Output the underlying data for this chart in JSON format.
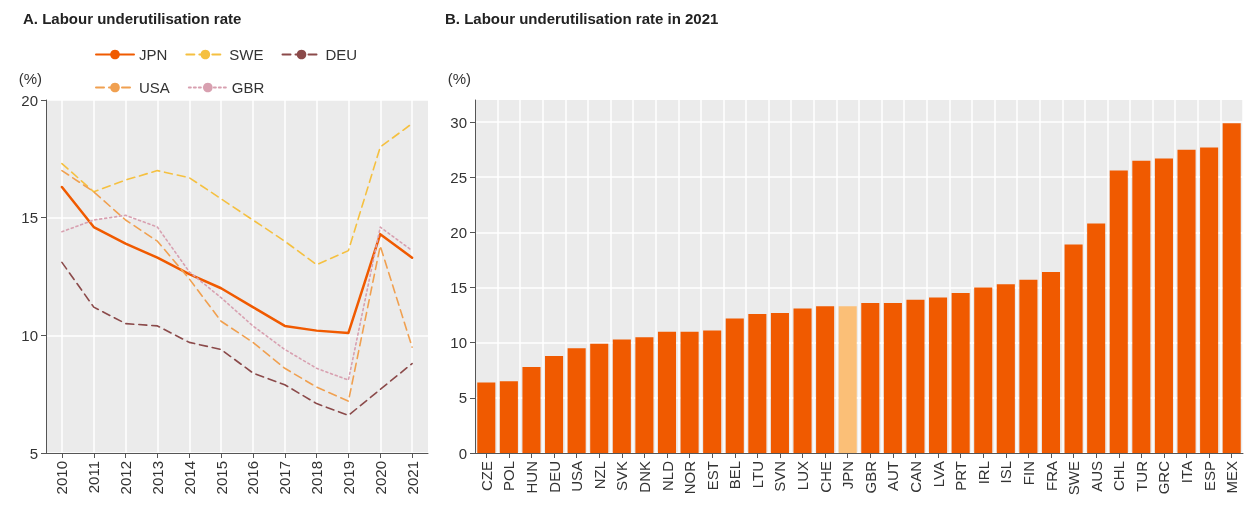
{
  "chart_data": [
    {
      "type": "line",
      "title": "A. Labour underutilisation rate",
      "ylabel": "(%)",
      "x": [
        2010,
        2011,
        2012,
        2013,
        2014,
        2015,
        2016,
        2017,
        2018,
        2019,
        2020,
        2021
      ],
      "xlim": [
        2009.5,
        2021.5
      ],
      "xticks": [
        2010,
        2011,
        2012,
        2013,
        2014,
        2015,
        2016,
        2017,
        2018,
        2019,
        2020,
        2021
      ],
      "ylim": [
        5,
        20
      ],
      "yticks": [
        5,
        10,
        15,
        20
      ],
      "grid": true,
      "legend": "top",
      "marker": "none",
      "series": [
        {
          "name": "JPN",
          "color": "#f05a00",
          "line_style": "solid",
          "values": [
            16.3,
            14.6,
            13.9,
            13.3,
            12.6,
            12.0,
            11.2,
            10.4,
            10.2,
            10.1,
            14.3,
            13.3
          ]
        },
        {
          "name": "SWE",
          "color": "#f5c040",
          "line_style": "dashed",
          "values": [
            17.3,
            16.1,
            16.6,
            17.0,
            16.7,
            15.8,
            14.9,
            14.0,
            13.0,
            13.6,
            18.0,
            19.0
          ]
        },
        {
          "name": "DEU",
          "color": "#8b4a4a",
          "line_style": "dashed",
          "values": [
            13.1,
            11.2,
            10.5,
            10.4,
            9.7,
            9.4,
            8.4,
            7.9,
            7.1,
            6.6,
            7.7,
            8.8
          ]
        },
        {
          "name": "USA",
          "color": "#f0a050",
          "line_style": "dashed",
          "values": [
            17.0,
            16.1,
            14.9,
            14.0,
            12.4,
            10.6,
            9.7,
            8.6,
            7.8,
            7.2,
            13.8,
            9.5
          ]
        },
        {
          "name": "GBR",
          "color": "#d8a0b0",
          "line_style": "dotted",
          "values": [
            14.4,
            14.9,
            15.1,
            14.6,
            12.7,
            11.6,
            10.4,
            9.4,
            8.6,
            8.1,
            14.6,
            13.6
          ]
        }
      ]
    },
    {
      "type": "bar",
      "title": "B. Labour underutilisation rate in 2021",
      "ylabel": "(%)",
      "categories": [
        "CZE",
        "POL",
        "HUN",
        "DEU",
        "USA",
        "NZL",
        "SVK",
        "DNK",
        "NLD",
        "NOR",
        "EST",
        "BEL",
        "LTU",
        "SVN",
        "LUX",
        "CHE",
        "JPN",
        "GBR",
        "AUT",
        "CAN",
        "LVA",
        "PRT",
        "IRL",
        "ISL",
        "FIN",
        "FRA",
        "SWE",
        "AUS",
        "CHL",
        "TUR",
        "GRC",
        "ITA",
        "ESP",
        "MEX"
      ],
      "values": [
        6.4,
        6.5,
        7.8,
        8.8,
        9.5,
        9.9,
        10.3,
        10.5,
        11.0,
        11.0,
        11.1,
        12.2,
        12.6,
        12.7,
        13.1,
        13.3,
        13.3,
        13.6,
        13.6,
        13.9,
        14.1,
        14.5,
        15.0,
        15.3,
        15.7,
        16.4,
        18.9,
        20.8,
        25.6,
        26.5,
        26.7,
        27.5,
        27.7,
        29.9
      ],
      "colors": [
        "#f05a00",
        "#f05a00",
        "#f05a00",
        "#f05a00",
        "#f05a00",
        "#f05a00",
        "#f05a00",
        "#f05a00",
        "#f05a00",
        "#f05a00",
        "#f05a00",
        "#f05a00",
        "#f05a00",
        "#f05a00",
        "#f05a00",
        "#f05a00",
        "#fbbf77",
        "#f05a00",
        "#f05a00",
        "#f05a00",
        "#f05a00",
        "#f05a00",
        "#f05a00",
        "#f05a00",
        "#f05a00",
        "#f05a00",
        "#f05a00",
        "#f05a00",
        "#f05a00",
        "#f05a00",
        "#f05a00",
        "#f05a00",
        "#f05a00",
        "#f05a00"
      ],
      "ylim": [
        0,
        32
      ],
      "yticks": [
        0,
        5,
        10,
        15,
        20,
        25,
        30
      ],
      "grid": true
    }
  ]
}
